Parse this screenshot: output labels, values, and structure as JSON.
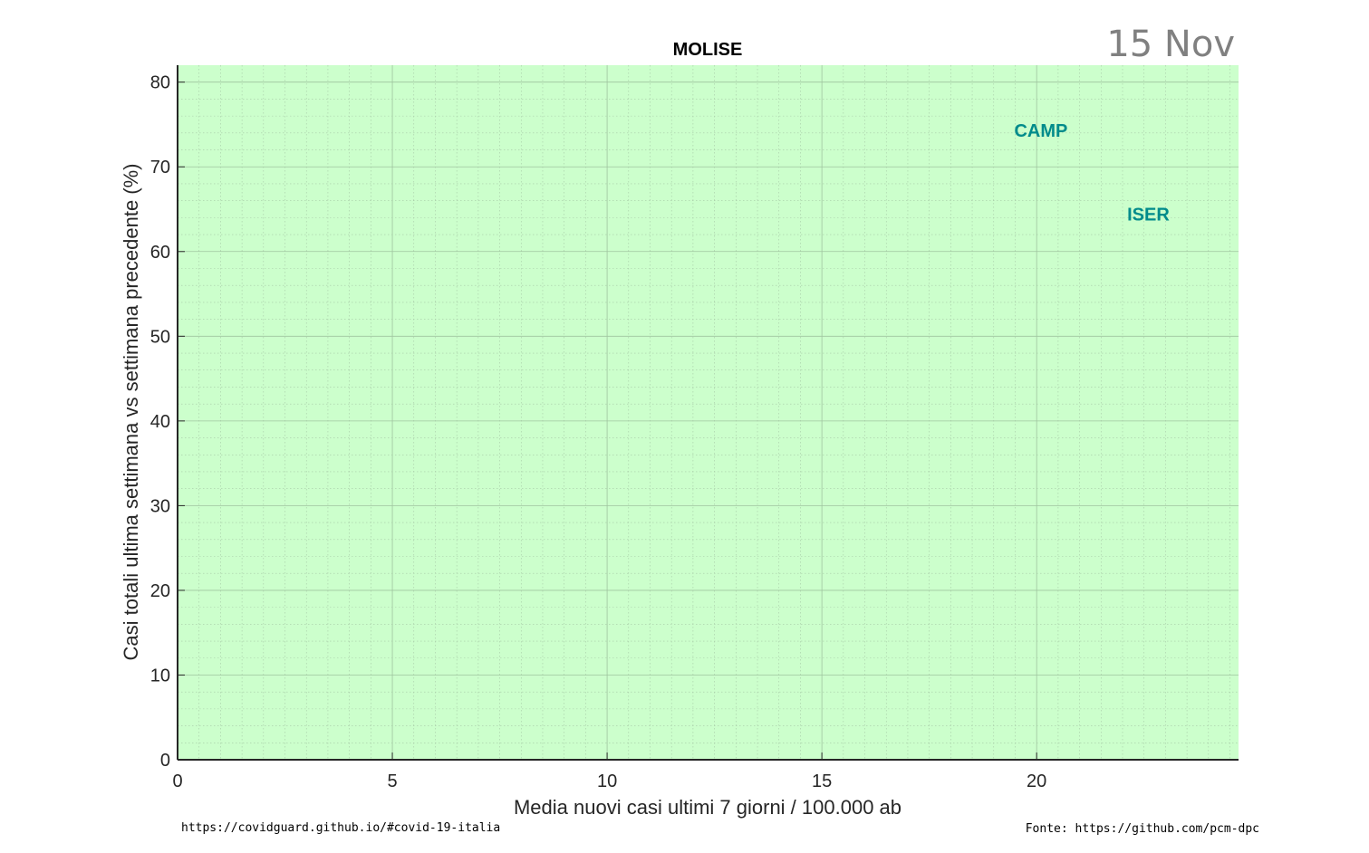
{
  "chart_data": {
    "type": "scatter",
    "title": "MOLISE",
    "date_label": "15 Nov",
    "xlabel": "Media nuovi casi ultimi 7 giorni / 100.000 ab",
    "ylabel": "Casi totali ultima settimana vs settimana precedente (%)",
    "xlim": [
      0,
      24.7
    ],
    "ylim": [
      0,
      82
    ],
    "xticks": [
      0,
      5,
      10,
      15,
      20
    ],
    "yticks": [
      0,
      10,
      20,
      30,
      40,
      50,
      60,
      70,
      80
    ],
    "grid": true,
    "background_color": "#ccffcc",
    "points": [
      {
        "label": "CAMP",
        "x": 20.1,
        "y": 74.3,
        "color": "#008b8b"
      },
      {
        "label": "ISER",
        "x": 22.6,
        "y": 64.4,
        "color": "#008b8b"
      }
    ]
  },
  "footer": {
    "left": "https://covidguard.github.io/#covid-19-italia",
    "right": "Fonte: https://github.com/pcm-dpc"
  }
}
